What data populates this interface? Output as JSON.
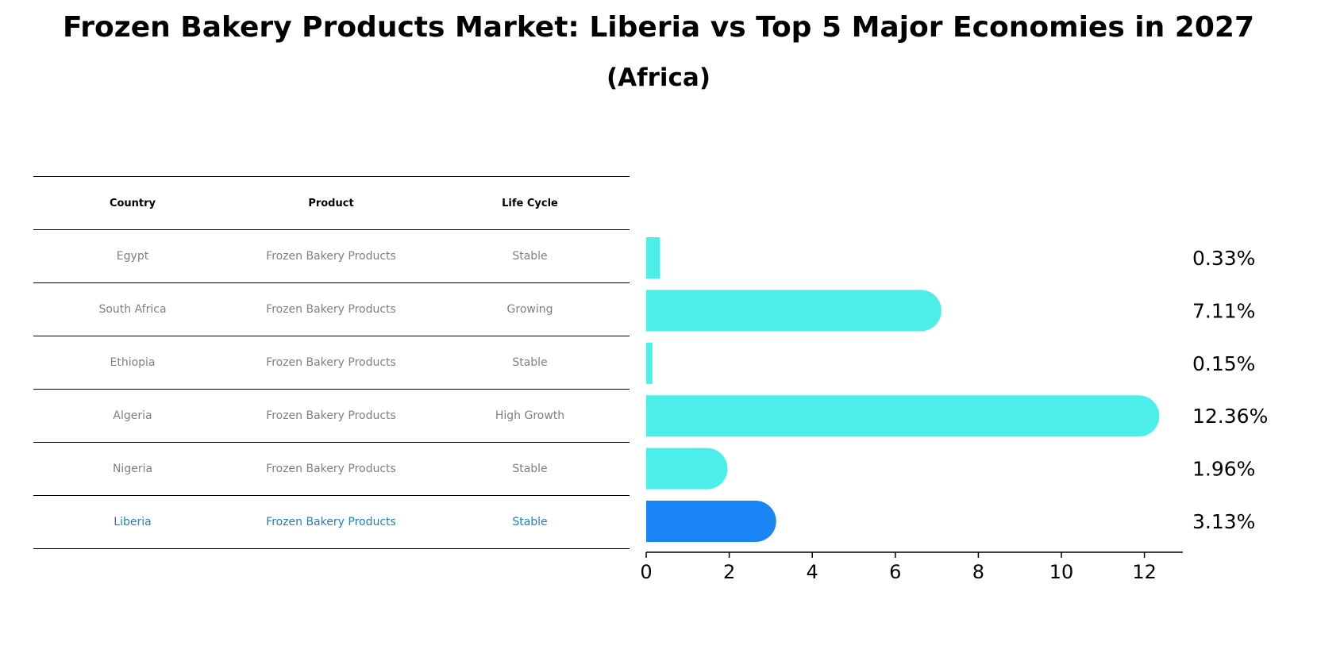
{
  "title": "Frozen Bakery Products Market: Liberia vs Top 5 Major Economies in 2027",
  "subtitle": "(Africa)",
  "table": {
    "headers": [
      "Country",
      "Product",
      "Life Cycle"
    ],
    "rows": [
      {
        "country": "Egypt",
        "product": "Frozen Bakery Products",
        "lifecycle": "Stable"
      },
      {
        "country": "South Africa",
        "product": "Frozen Bakery Products",
        "lifecycle": "Growing"
      },
      {
        "country": "Ethiopia",
        "product": "Frozen Bakery Products",
        "lifecycle": "Stable"
      },
      {
        "country": "Algeria",
        "product": "Frozen Bakery Products",
        "lifecycle": "High Growth"
      },
      {
        "country": "Nigeria",
        "product": "Frozen Bakery Products",
        "lifecycle": "Stable"
      },
      {
        "country": "Liberia",
        "product": "Frozen Bakery Products",
        "lifecycle": "Stable"
      }
    ]
  },
  "chart_data": {
    "type": "bar",
    "orientation": "horizontal",
    "title": "Frozen Bakery Products Market: Liberia vs Top 5 Major Economies in 2027",
    "subtitle": "(Africa)",
    "categories": [
      "Egypt",
      "South Africa",
      "Ethiopia",
      "Algeria",
      "Nigeria",
      "Liberia"
    ],
    "values": [
      0.33,
      7.11,
      0.15,
      12.36,
      1.96,
      3.13
    ],
    "value_labels": [
      "0.33%",
      "7.11%",
      "0.15%",
      "12.36%",
      "1.96%",
      "3.13%"
    ],
    "highlight": "Liberia",
    "xlim": [
      0,
      13
    ],
    "xticks": [
      0,
      2,
      4,
      6,
      8,
      10,
      12
    ],
    "xlabel": "",
    "ylabel": "",
    "grid": false,
    "colors": {
      "default": "#4CEEEA",
      "highlight": "#1A85F5",
      "highlight_text": "#1F7EC4"
    }
  }
}
